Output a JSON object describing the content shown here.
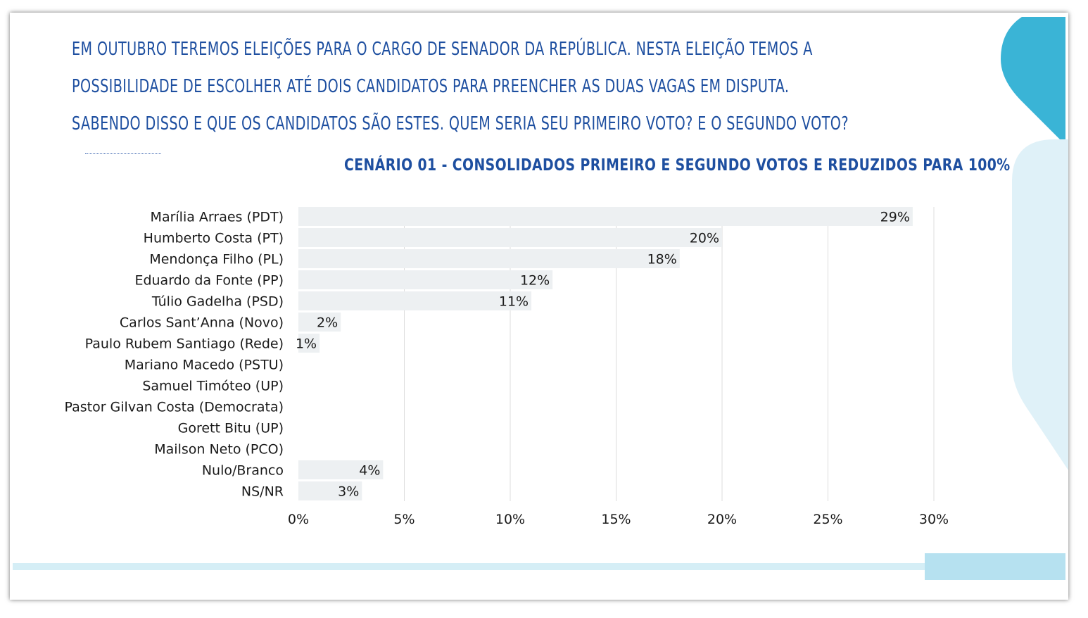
{
  "question_lines": [
    "EM OUTUBRO TEREMOS ELEIÇÕES PARA O CARGO DE SENADOR DA REPÚBLICA. NESTA ELEIÇÃO TEMOS A",
    "POSSIBILIDADE DE ESCOLHER ATÉ DOIS CANDIDATOS PARA PREENCHER AS DUAS VAGAS EM DISPUTA.",
    "SABENDO DISSO E QUE OS CANDIDATOS SÃO ESTES. QUEM SERIA SEU PRIMEIRO VOTO? E O SEGUNDO VOTO?"
  ],
  "colors": {
    "title": "#1e4fa0",
    "bar": "#edf0f2",
    "grid": "#dcdcdc",
    "accent_dark": "#3ab4d6",
    "accent_light": "#dff1f8"
  },
  "chart_data": {
    "type": "bar",
    "orientation": "horizontal",
    "title": "CENÁRIO 01 - CONSOLIDADOS PRIMEIRO E SEGUNDO VOTOS E REDUZIDOS PARA 100%",
    "categories": [
      "Marília Arraes (PDT)",
      "Humberto Costa (PT)",
      "Mendonça Filho (PL)",
      "Eduardo da Fonte (PP)",
      "Túlio Gadelha (PSD)",
      "Carlos Sant’Anna (Novo)",
      "Paulo Rubem Santiago (Rede)",
      "Mariano Macedo (PSTU)",
      "Samuel Timóteo (UP)",
      "Pastor Gilvan Costa (Democrata)",
      "Gorett Bitu (UP)",
      "Mailson Neto (PCO)",
      "Nulo/Branco",
      "NS/NR"
    ],
    "values": [
      29,
      20,
      18,
      12,
      11,
      2,
      1,
      0,
      0,
      0,
      0,
      0,
      4,
      3
    ],
    "value_labels": [
      "29%",
      "20%",
      "18%",
      "12%",
      "11%",
      "2%",
      "1%",
      "",
      "",
      "",
      "",
      "",
      "4%",
      "3%"
    ],
    "xlim": [
      0,
      30
    ],
    "xticks": [
      0,
      5,
      10,
      15,
      20,
      25,
      30
    ],
    "xtick_labels": [
      "0%",
      "5%",
      "10%",
      "15%",
      "20%",
      "25%",
      "30%"
    ],
    "grid": "vertical",
    "legend": "none"
  }
}
